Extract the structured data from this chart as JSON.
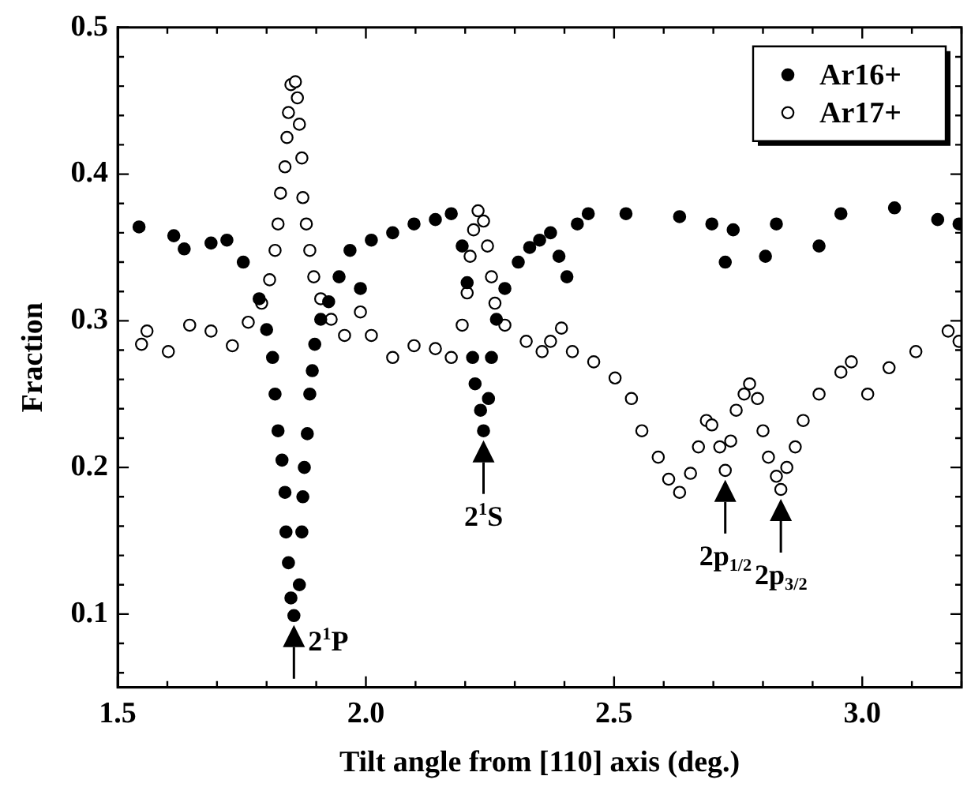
{
  "chart_data": {
    "type": "scatter",
    "xlabel": "Tilt angle from [110] axis (deg.)",
    "ylabel": "Fraction",
    "xlim": [
      1.5,
      3.2
    ],
    "ylim": [
      0.05,
      0.5
    ],
    "xticks": [
      1.5,
      {
        "value": 1.6,
        "label": null
      },
      {
        "value": 1.7,
        "label": null
      },
      {
        "value": 1.8,
        "label": null
      },
      {
        "value": 1.9,
        "label": null
      },
      {
        "value": 2,
        "label": "2.0"
      },
      {
        "value": 2.1,
        "label": null
      },
      {
        "value": 2.2,
        "label": null
      },
      {
        "value": 2.3,
        "label": null
      },
      {
        "value": 2.4,
        "label": null
      },
      2.5,
      {
        "value": 2.6,
        "label": null
      },
      {
        "value": 2.7,
        "label": null
      },
      {
        "value": 2.8,
        "label": null
      },
      {
        "value": 2.9,
        "label": null
      },
      {
        "value": 3,
        "label": "3.0"
      },
      {
        "value": 3.1,
        "label": null
      },
      {
        "value": 3.2,
        "label": null
      }
    ],
    "yticks": [
      {
        "value": 0.06,
        "label": null
      },
      {
        "value": 0.08,
        "label": null
      },
      0.1,
      {
        "value": 0.12,
        "label": null
      },
      {
        "value": 0.14,
        "label": null
      },
      {
        "value": 0.16,
        "label": null
      },
      {
        "value": 0.18,
        "label": null
      },
      0.2,
      {
        "value": 0.22,
        "label": null
      },
      {
        "value": 0.24,
        "label": null
      },
      {
        "value": 0.26,
        "label": null
      },
      {
        "value": 0.28,
        "label": null
      },
      0.3,
      {
        "value": 0.32,
        "label": null
      },
      {
        "value": 0.34,
        "label": null
      },
      {
        "value": 0.36,
        "label": null
      },
      {
        "value": 0.38,
        "label": null
      },
      0.4,
      {
        "value": 0.42,
        "label": null
      },
      {
        "value": 0.44,
        "label": null
      },
      {
        "value": 0.46,
        "label": null
      },
      {
        "value": 0.48,
        "label": null
      },
      0.5
    ],
    "grid": false,
    "legend": "top right",
    "marker": "circle",
    "series": [
      {
        "name": "Ar16+",
        "color": "#000000",
        "x": [
          1.543,
          1.613,
          1.634,
          1.688,
          1.72,
          1.753,
          1.785,
          1.8,
          1.812,
          1.817,
          1.823,
          1.831,
          1.837,
          1.839,
          1.844,
          1.849,
          1.855,
          1.866,
          1.871,
          1.873,
          1.876,
          1.882,
          1.887,
          1.892,
          1.897,
          1.909,
          1.925,
          1.946,
          1.968,
          1.989,
          2.011,
          2.054,
          2.097,
          2.14,
          2.172,
          2.194,
          2.204,
          2.215,
          2.22,
          2.231,
          2.237,
          2.247,
          2.253,
          2.263,
          2.28,
          2.307,
          2.33,
          2.35,
          2.372,
          2.389,
          2.405,
          2.426,
          2.448,
          2.524,
          2.632,
          2.697,
          2.724,
          2.74,
          2.805,
          2.827,
          2.913,
          2.957,
          3.065,
          3.152,
          3.195
        ],
        "values": [
          0.364,
          0.358,
          0.349,
          0.353,
          0.355,
          0.34,
          0.315,
          0.294,
          0.275,
          0.25,
          0.225,
          0.205,
          0.183,
          0.156,
          0.135,
          0.111,
          0.099,
          0.12,
          0.156,
          0.18,
          0.2,
          0.223,
          0.25,
          0.266,
          0.284,
          0.301,
          0.313,
          0.33,
          0.348,
          0.322,
          0.355,
          0.36,
          0.366,
          0.369,
          0.373,
          0.351,
          0.326,
          0.275,
          0.257,
          0.239,
          0.225,
          0.247,
          0.275,
          0.301,
          0.322,
          0.34,
          0.35,
          0.355,
          0.36,
          0.344,
          0.33,
          0.366,
          0.373,
          0.373,
          0.371,
          0.366,
          0.34,
          0.362,
          0.344,
          0.366,
          0.351,
          0.373,
          0.377,
          0.369,
          0.366
        ]
      },
      {
        "name": "Ar17+",
        "color": "#000000",
        "x": [
          1.548,
          1.559,
          1.602,
          1.645,
          1.688,
          1.731,
          1.763,
          1.79,
          1.806,
          1.817,
          1.823,
          1.828,
          1.837,
          1.841,
          1.844,
          1.849,
          1.858,
          1.862,
          1.866,
          1.871,
          1.873,
          1.88,
          1.887,
          1.895,
          1.909,
          1.93,
          1.957,
          1.989,
          2.011,
          2.054,
          2.097,
          2.14,
          2.172,
          2.194,
          2.204,
          2.21,
          2.217,
          2.226,
          2.237,
          2.245,
          2.253,
          2.26,
          2.28,
          2.323,
          2.355,
          2.372,
          2.394,
          2.416,
          2.459,
          2.502,
          2.535,
          2.556,
          2.589,
          2.61,
          2.632,
          2.654,
          2.67,
          2.686,
          2.697,
          2.713,
          2.724,
          2.735,
          2.746,
          2.762,
          2.773,
          2.789,
          2.8,
          2.811,
          2.827,
          2.836,
          2.848,
          2.865,
          2.881,
          2.913,
          2.957,
          2.978,
          3.011,
          3.054,
          3.108,
          3.173,
          3.195
        ],
        "values": [
          0.284,
          0.293,
          0.279,
          0.297,
          0.293,
          0.283,
          0.299,
          0.312,
          0.328,
          0.348,
          0.366,
          0.387,
          0.405,
          0.425,
          0.442,
          0.461,
          0.463,
          0.452,
          0.434,
          0.411,
          0.384,
          0.366,
          0.348,
          0.33,
          0.315,
          0.301,
          0.29,
          0.306,
          0.29,
          0.275,
          0.283,
          0.281,
          0.275,
          0.297,
          0.319,
          0.344,
          0.362,
          0.375,
          0.368,
          0.351,
          0.33,
          0.312,
          0.297,
          0.286,
          0.279,
          0.286,
          0.295,
          0.279,
          0.272,
          0.261,
          0.247,
          0.225,
          0.207,
          0.192,
          0.183,
          0.196,
          0.214,
          0.232,
          0.229,
          0.214,
          0.198,
          0.218,
          0.239,
          0.25,
          0.257,
          0.247,
          0.225,
          0.207,
          0.194,
          0.185,
          0.2,
          0.214,
          0.232,
          0.25,
          0.265,
          0.272,
          0.25,
          0.268,
          0.279,
          0.293,
          0.286
        ]
      }
    ],
    "annotations": [
      {
        "text": "2$^{1}$P",
        "x": 1.855,
        "y": 0.099
      },
      {
        "text": "2$^{1}$S",
        "x": 2.237,
        "y": 0.225
      },
      {
        "text": "2p$_{1/2}$",
        "x": 2.724,
        "y": 0.198
      },
      {
        "text": "2p$_{3/2}$",
        "x": 2.836,
        "y": 0.185
      }
    ]
  }
}
